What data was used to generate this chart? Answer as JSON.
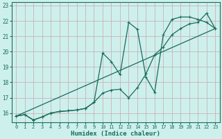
{
  "title": "",
  "xlabel": "Humidex (Indice chaleur)",
  "ylabel": "",
  "bg_color": "#cdf0ed",
  "grid_color": "#c8b4b4",
  "line_color": "#1a6b5a",
  "xlim": [
    -0.5,
    23.5
  ],
  "ylim": [
    15.4,
    23.2
  ],
  "xticks": [
    0,
    1,
    2,
    3,
    4,
    5,
    6,
    7,
    8,
    9,
    10,
    11,
    12,
    13,
    14,
    15,
    16,
    17,
    18,
    19,
    20,
    21,
    22,
    23
  ],
  "yticks": [
    16,
    17,
    18,
    19,
    20,
    21,
    22,
    23
  ],
  "line1_x": [
    0,
    1,
    2,
    3,
    4,
    5,
    6,
    7,
    8,
    9,
    10,
    11,
    12,
    13,
    14,
    15,
    16,
    17,
    18,
    19,
    20,
    21,
    22,
    23
  ],
  "line1_y": [
    15.8,
    15.9,
    15.55,
    15.75,
    16.0,
    16.1,
    16.15,
    16.2,
    16.3,
    16.7,
    19.9,
    19.35,
    18.5,
    21.9,
    21.45,
    18.35,
    17.35,
    21.1,
    22.1,
    22.25,
    22.25,
    22.1,
    21.9,
    21.5
  ],
  "line2_x": [
    0,
    1,
    2,
    3,
    4,
    5,
    6,
    7,
    8,
    9,
    10,
    11,
    12,
    13,
    14,
    15,
    16,
    17,
    18,
    19,
    20,
    21,
    22,
    23
  ],
  "line2_y": [
    15.8,
    15.9,
    15.55,
    15.75,
    16.0,
    16.1,
    16.15,
    16.2,
    16.3,
    16.7,
    17.3,
    17.5,
    17.55,
    17.0,
    17.65,
    18.55,
    19.8,
    20.3,
    21.1,
    21.5,
    21.8,
    21.9,
    22.5,
    21.5
  ],
  "line3_x": [
    0,
    23
  ],
  "line3_y": [
    15.8,
    21.5
  ]
}
